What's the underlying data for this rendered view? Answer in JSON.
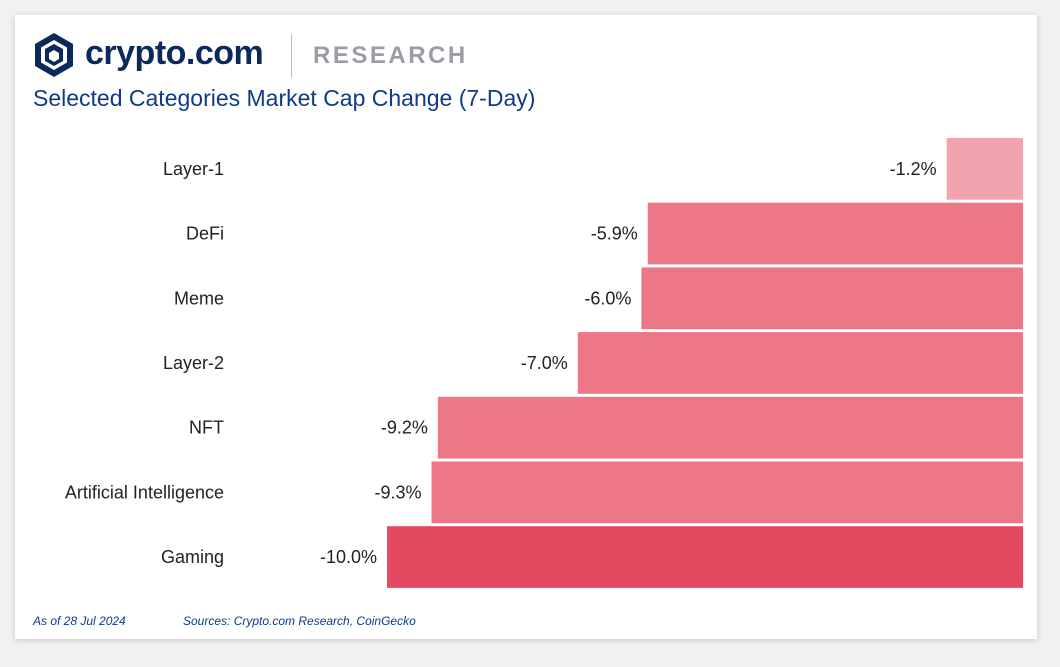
{
  "header": {
    "brand_name": "crypto.com",
    "section": "RESEARCH",
    "logo_icon": "crypto-com-lion-shield-icon",
    "brand_color": "#0b2a5b"
  },
  "chart_data": {
    "type": "bar",
    "orientation": "horizontal",
    "title": "Selected Categories Market Cap Change (7-Day)",
    "xlabel": "",
    "ylabel": "",
    "categories": [
      "Layer-1",
      "DeFi",
      "Meme",
      "Layer-2",
      "NFT",
      "Artificial Intelligence",
      "Gaming"
    ],
    "values": [
      -1.2,
      -5.9,
      -6.0,
      -7.0,
      -9.2,
      -9.3,
      -10.0
    ],
    "labels": [
      "-1.2%",
      "-5.9%",
      "-6.0%",
      "-7.0%",
      "-9.2%",
      "-9.3%",
      "-10.0%"
    ],
    "xlim": [
      -10.0,
      0
    ],
    "grid": false,
    "colors": {
      "lightest": "#f2a4ae",
      "mid": "#eb7787",
      "darkest": "#e34a62"
    }
  },
  "footer": {
    "date": "As of 28 Jul 2024",
    "sources": "Sources: Crypto.com Research, CoinGecko"
  }
}
